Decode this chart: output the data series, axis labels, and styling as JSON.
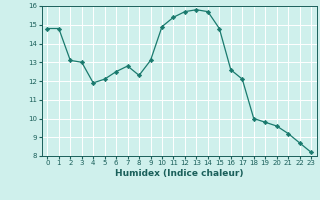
{
  "x": [
    0,
    1,
    2,
    3,
    4,
    5,
    6,
    7,
    8,
    9,
    10,
    11,
    12,
    13,
    14,
    15,
    16,
    17,
    18,
    19,
    20,
    21,
    22,
    23
  ],
  "y": [
    14.8,
    14.8,
    13.1,
    13.0,
    11.9,
    12.1,
    12.5,
    12.8,
    12.3,
    13.1,
    14.9,
    15.4,
    15.7,
    15.8,
    15.7,
    14.8,
    12.6,
    12.1,
    10.0,
    9.8,
    9.6,
    9.2,
    8.7,
    8.2
  ],
  "line_color": "#1a7a6e",
  "marker": "D",
  "marker_size": 2.2,
  "bg_color": "#cff0ec",
  "grid_color": "#ffffff",
  "tick_color": "#1a5f5a",
  "xlabel": "Humidex (Indice chaleur)",
  "xlim": [
    -0.5,
    23.5
  ],
  "ylim": [
    8,
    16
  ],
  "yticks": [
    8,
    9,
    10,
    11,
    12,
    13,
    14,
    15,
    16
  ],
  "xticks": [
    0,
    1,
    2,
    3,
    4,
    5,
    6,
    7,
    8,
    9,
    10,
    11,
    12,
    13,
    14,
    15,
    16,
    17,
    18,
    19,
    20,
    21,
    22,
    23
  ]
}
